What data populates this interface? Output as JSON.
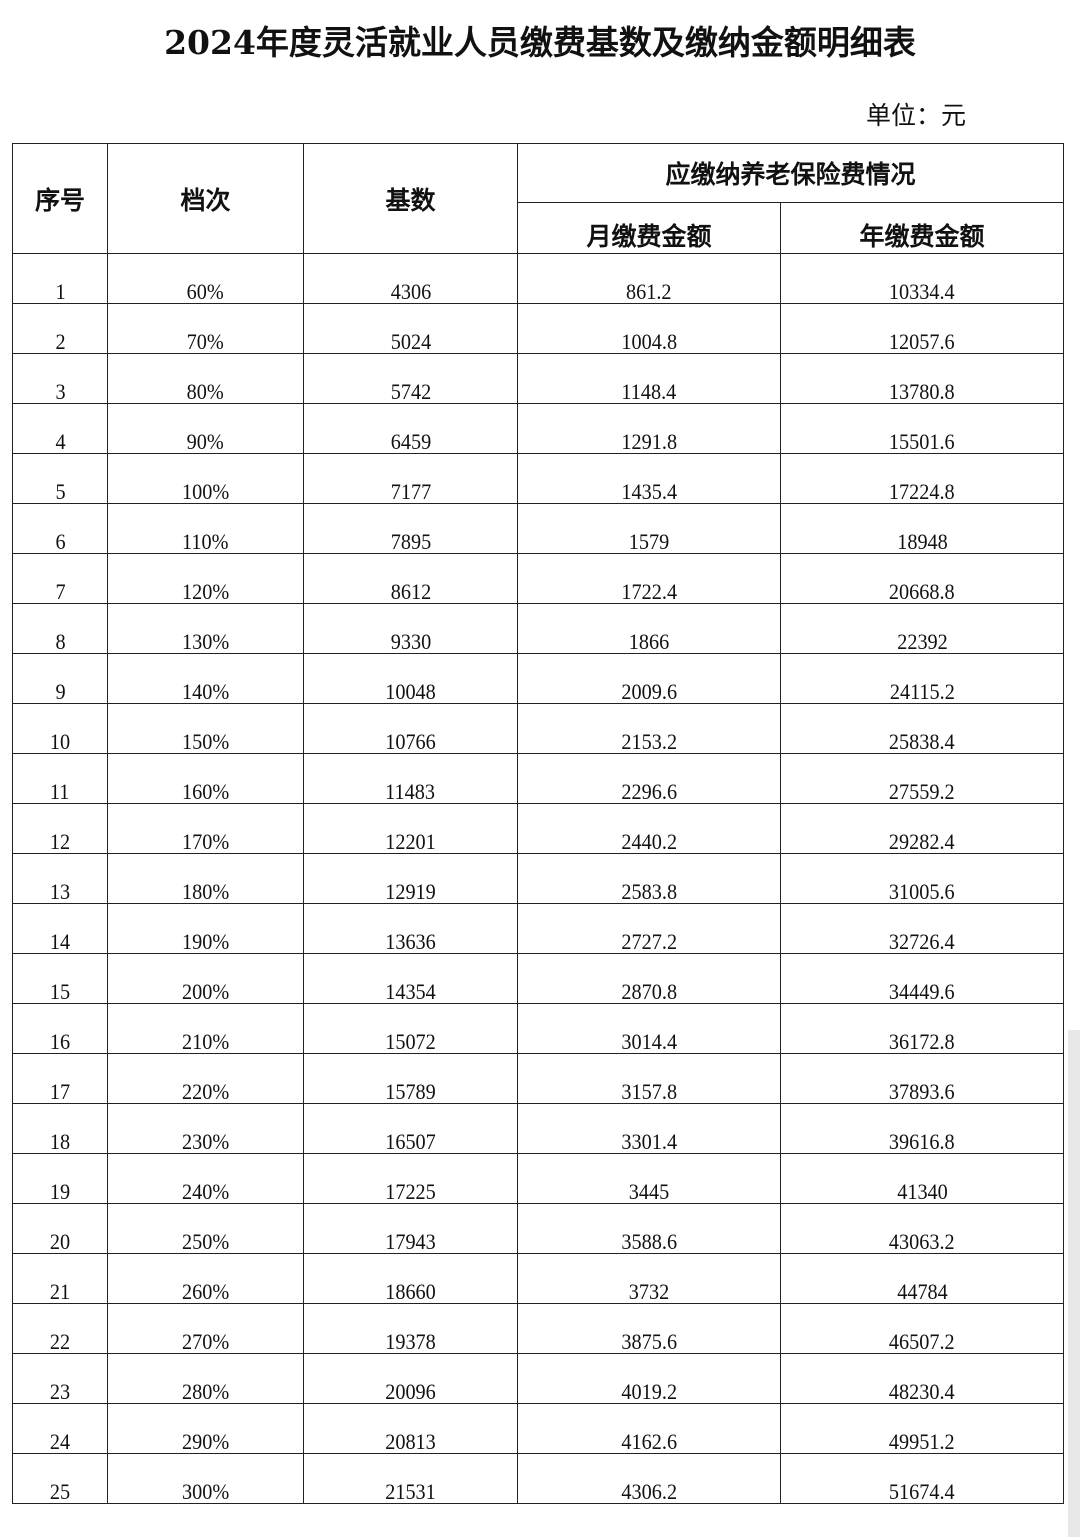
{
  "title": "2024年度灵活就业人员缴费基数及缴纳金额明细表",
  "unit": "单位：元",
  "headers": {
    "index": "序号",
    "tier": "档次",
    "base": "基数",
    "group": "应缴纳养老保险费情况",
    "monthly": "月缴费金额",
    "annual": "年缴费金额"
  },
  "rows": [
    [
      "1",
      "60%",
      "4306",
      "861.2",
      "10334.4"
    ],
    [
      "2",
      "70%",
      "5024",
      "1004.8",
      "12057.6"
    ],
    [
      "3",
      "80%",
      "5742",
      "1148.4",
      "13780.8"
    ],
    [
      "4",
      "90%",
      "6459",
      "1291.8",
      "15501.6"
    ],
    [
      "5",
      "100%",
      "7177",
      "1435.4",
      "17224.8"
    ],
    [
      "6",
      "110%",
      "7895",
      "1579",
      "18948"
    ],
    [
      "7",
      "120%",
      "8612",
      "1722.4",
      "20668.8"
    ],
    [
      "8",
      "130%",
      "9330",
      "1866",
      "22392"
    ],
    [
      "9",
      "140%",
      "10048",
      "2009.6",
      "24115.2"
    ],
    [
      "10",
      "150%",
      "10766",
      "2153.2",
      "25838.4"
    ],
    [
      "11",
      "160%",
      "11483",
      "2296.6",
      "27559.2"
    ],
    [
      "12",
      "170%",
      "12201",
      "2440.2",
      "29282.4"
    ],
    [
      "13",
      "180%",
      "12919",
      "2583.8",
      "31005.6"
    ],
    [
      "14",
      "190%",
      "13636",
      "2727.2",
      "32726.4"
    ],
    [
      "15",
      "200%",
      "14354",
      "2870.8",
      "34449.6"
    ],
    [
      "16",
      "210%",
      "15072",
      "3014.4",
      "36172.8"
    ],
    [
      "17",
      "220%",
      "15789",
      "3157.8",
      "37893.6"
    ],
    [
      "18",
      "230%",
      "16507",
      "3301.4",
      "39616.8"
    ],
    [
      "19",
      "240%",
      "17225",
      "3445",
      "41340"
    ],
    [
      "20",
      "250%",
      "17943",
      "3588.6",
      "43063.2"
    ],
    [
      "21",
      "260%",
      "18660",
      "3732",
      "44784"
    ],
    [
      "22",
      "270%",
      "19378",
      "3875.6",
      "46507.2"
    ],
    [
      "23",
      "280%",
      "20096",
      "4019.2",
      "48230.4"
    ],
    [
      "24",
      "290%",
      "20813",
      "4162.6",
      "49951.2"
    ],
    [
      "25",
      "300%",
      "21531",
      "4306.2",
      "51674.4"
    ]
  ]
}
